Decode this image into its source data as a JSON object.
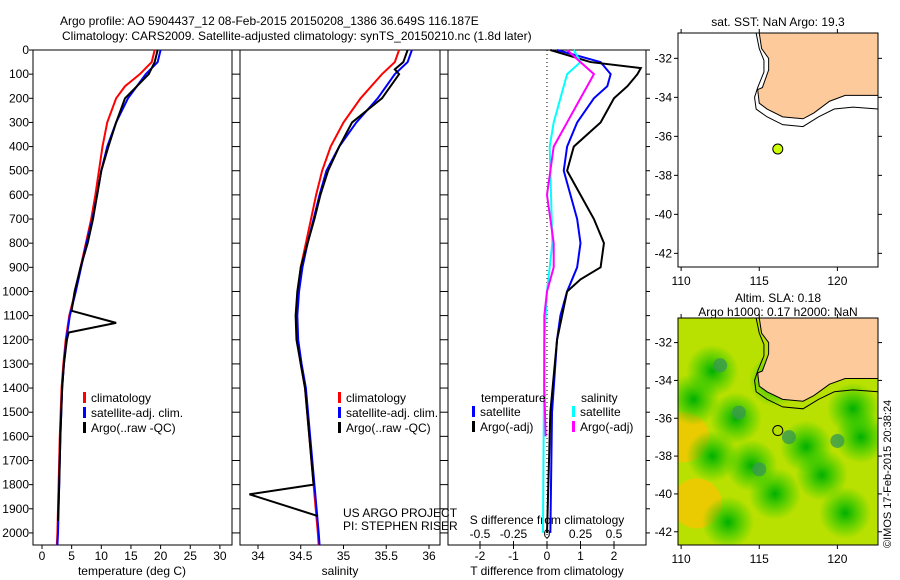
{
  "title_line1": "Argo profile: AO 5904437_12 08-Feb-2015 20150208_1386 36.649S 116.187E",
  "title_line2": "Climatology: CARS2009. Satellite-adjusted climatology: synTS_20150210.nc (1.8d later)",
  "side_stamp": "©IMOS 17-Feb-2015 20:38:24",
  "colors": {
    "clim": "#ff0000",
    "sat": "#0000ff",
    "argo": "#000000",
    "s_sat": "#00ffff",
    "s_argo": "#ff00ff",
    "land": "#fdca9b",
    "float": "#ccff00"
  },
  "chart_data": [
    {
      "type": "line",
      "xlabel": "temperature (deg C)",
      "ylabel": "",
      "xlim": [
        -1.5,
        32
      ],
      "ylim": [
        2050,
        0
      ],
      "xticks": [
        0,
        5,
        10,
        15,
        20,
        25,
        30
      ],
      "yticks": [
        0,
        100,
        200,
        300,
        400,
        500,
        600,
        700,
        800,
        900,
        1000,
        1100,
        1200,
        1300,
        1400,
        1500,
        1600,
        1700,
        1800,
        1900,
        2000
      ],
      "legend": [
        "climatology",
        "satellite-adj. clim.",
        "Argo(..raw -QC)"
      ],
      "series": [
        {
          "name": "climatology",
          "color": "#ff0000",
          "depth": [
            0,
            50,
            100,
            150,
            200,
            300,
            400,
            500,
            600,
            700,
            800,
            900,
            1000,
            1100,
            1200,
            1300,
            1400,
            1600,
            1800,
            2000,
            2050
          ],
          "values": [
            19,
            18.5,
            16.5,
            14,
            12.5,
            11,
            10.2,
            9.6,
            9,
            8.3,
            7.4,
            6.5,
            5.6,
            4.6,
            4,
            3.6,
            3.3,
            3,
            2.8,
            2.6,
            2.5
          ]
        },
        {
          "name": "satellite-adj. clim.",
          "color": "#0000ff",
          "depth": [
            0,
            50,
            100,
            150,
            200,
            300,
            400,
            500,
            600,
            700,
            800,
            900,
            1000,
            1100,
            1200,
            1300,
            1400,
            1600,
            1800,
            2000,
            2050
          ],
          "values": [
            20,
            19.5,
            17.5,
            16,
            14.5,
            12.5,
            11,
            10,
            9.3,
            8.5,
            7.5,
            6.6,
            5.7,
            4.7,
            4.1,
            3.7,
            3.4,
            3.1,
            2.9,
            2.7,
            2.6
          ]
        },
        {
          "name": "Argo(..raw -QC)",
          "color": "#000000",
          "depth": [
            0,
            50,
            100,
            200,
            300,
            400,
            500,
            600,
            700,
            800,
            900,
            1000,
            1080,
            1130,
            1170,
            1200,
            1300,
            1400,
            1600,
            1800,
            1950
          ],
          "values": [
            19.5,
            19,
            18,
            14,
            12.5,
            11.2,
            10,
            9.3,
            8.6,
            7.7,
            6.5,
            5.5,
            5,
            12.5,
            4.5,
            4.2,
            3.7,
            3.4,
            3.1,
            2.9,
            2.7
          ]
        }
      ]
    },
    {
      "type": "line",
      "xlabel": "salinity",
      "ylabel": "",
      "xlim": [
        33.8,
        36.1
      ],
      "ylim": [
        2050,
        0
      ],
      "xticks": [
        34,
        34.5,
        35,
        35.5,
        36
      ],
      "legend": [
        "climatology",
        "satellite-adj. clim.",
        "Argo(..raw -QC)"
      ],
      "annotation": [
        "US ARGO PROJECT",
        "PI: STEPHEN RISER"
      ],
      "series": [
        {
          "name": "climatology",
          "color": "#ff0000",
          "depth": [
            0,
            50,
            100,
            200,
            300,
            400,
            500,
            600,
            700,
            800,
            900,
            1000,
            1100,
            1200,
            1300,
            1400,
            1600,
            1800,
            2000,
            2050
          ],
          "values": [
            35.65,
            35.6,
            35.45,
            35.2,
            35.0,
            34.85,
            34.75,
            34.68,
            34.62,
            34.56,
            34.5,
            34.47,
            34.45,
            34.46,
            34.5,
            34.55,
            34.6,
            34.65,
            34.7,
            34.71
          ]
        },
        {
          "name": "satellite-adj. clim.",
          "color": "#0000ff",
          "depth": [
            0,
            50,
            100,
            200,
            300,
            400,
            500,
            600,
            700,
            800,
            900,
            1000,
            1100,
            1200,
            1300,
            1400,
            1600,
            1800,
            2000,
            2050
          ],
          "values": [
            35.8,
            35.75,
            35.6,
            35.4,
            35.15,
            34.95,
            34.8,
            34.72,
            34.65,
            34.58,
            34.52,
            34.48,
            34.46,
            34.47,
            34.51,
            34.56,
            34.61,
            34.66,
            34.71,
            34.72
          ]
        },
        {
          "name": "Argo(..raw -QC)",
          "color": "#000000",
          "depth": [
            0,
            50,
            80,
            100,
            200,
            300,
            400,
            500,
            600,
            700,
            800,
            900,
            1000,
            1100,
            1200,
            1300,
            1400,
            1600,
            1800,
            1840,
            1930
          ],
          "values": [
            35.75,
            35.7,
            35.6,
            35.65,
            35.45,
            35.1,
            34.95,
            34.82,
            34.73,
            34.66,
            34.58,
            34.5,
            34.46,
            34.44,
            34.45,
            34.5,
            34.55,
            34.6,
            34.65,
            33.9,
            34.7
          ]
        }
      ]
    },
    {
      "type": "line",
      "xlabel": "T difference from climatology",
      "xlabel2": "S difference from climatology",
      "xlim": [
        -2.5,
        2.9
      ],
      "ylim": [
        2050,
        0
      ],
      "xticks": [
        -2,
        -1,
        0,
        1,
        2
      ],
      "xticks2": [
        -0.5,
        -0.25,
        0,
        0.25,
        0.5
      ],
      "legend_t": {
        "title": "temperature",
        "items": [
          "satellite",
          "Argo(-adj)"
        ]
      },
      "legend_s": {
        "title": "salinity",
        "items": [
          "satellite",
          "Argo(-adj)"
        ]
      },
      "series": [
        {
          "name": "T satellite",
          "axis": "T",
          "color": "#0000ff",
          "depth": [
            0,
            50,
            100,
            150,
            200,
            300,
            400,
            500,
            600,
            700,
            800,
            900,
            1000,
            1100,
            1200,
            1500,
            2000
          ],
          "values": [
            0.3,
            1.6,
            1.9,
            1.8,
            1.4,
            0.9,
            0.6,
            0.5,
            0.7,
            0.9,
            1.0,
            0.9,
            0.6,
            0.4,
            0.3,
            0.15,
            0.1
          ]
        },
        {
          "name": "T Argo(-adj)",
          "axis": "T",
          "color": "#000000",
          "depth": [
            0,
            50,
            75,
            100,
            150,
            200,
            300,
            400,
            500,
            600,
            700,
            800,
            900,
            950,
            1000,
            1200,
            1500,
            2000
          ],
          "values": [
            0.1,
            1.3,
            2.8,
            2.7,
            2.4,
            2.0,
            1.6,
            0.8,
            0.6,
            1.0,
            1.4,
            1.7,
            1.6,
            1.0,
            0.6,
            0.3,
            0.1,
            0.0
          ]
        },
        {
          "name": "S satellite",
          "axis": "S",
          "color": "#00ffff",
          "depth": [
            0,
            50,
            100,
            200,
            300,
            400,
            600,
            800,
            1000,
            1200,
            2000
          ],
          "values": [
            0.2,
            0.25,
            0.15,
            0.1,
            0.05,
            0.02,
            0.03,
            0.04,
            0.0,
            -0.02,
            -0.03
          ]
        },
        {
          "name": "S Argo(-adj)",
          "axis": "S",
          "color": "#ff00ff",
          "depth": [
            0,
            50,
            100,
            150,
            200,
            300,
            400,
            600,
            800,
            900,
            1000,
            1100,
            1400,
            1600
          ],
          "values": [
            0.15,
            0.25,
            0.35,
            0.3,
            0.25,
            0.15,
            0.05,
            0.0,
            0.05,
            0.05,
            0.0,
            -0.02,
            -0.02,
            -0.01
          ]
        }
      ]
    },
    {
      "type": "map",
      "title": "sat. SST: NaN Argo: 19.3",
      "xlim": [
        109.8,
        122.6
      ],
      "ylim": [
        -42.7,
        -30.7
      ],
      "xticks": [
        110,
        115,
        120
      ],
      "yticks": [
        -32,
        -34,
        -36,
        -38,
        -40,
        -42
      ],
      "float": [
        116.187,
        -36.649
      ]
    },
    {
      "type": "map",
      "title": "Altim. SLA: 0.18",
      "subtitle": "Argo h1000: 0.17 h2000: NaN",
      "xlim": [
        109.8,
        122.6
      ],
      "ylim": [
        -42.7,
        -30.7
      ],
      "xticks": [
        110,
        115,
        120
      ],
      "yticks": [
        -32,
        -34,
        -36,
        -38,
        -40,
        -42
      ],
      "float": [
        116.187,
        -36.649
      ]
    }
  ]
}
